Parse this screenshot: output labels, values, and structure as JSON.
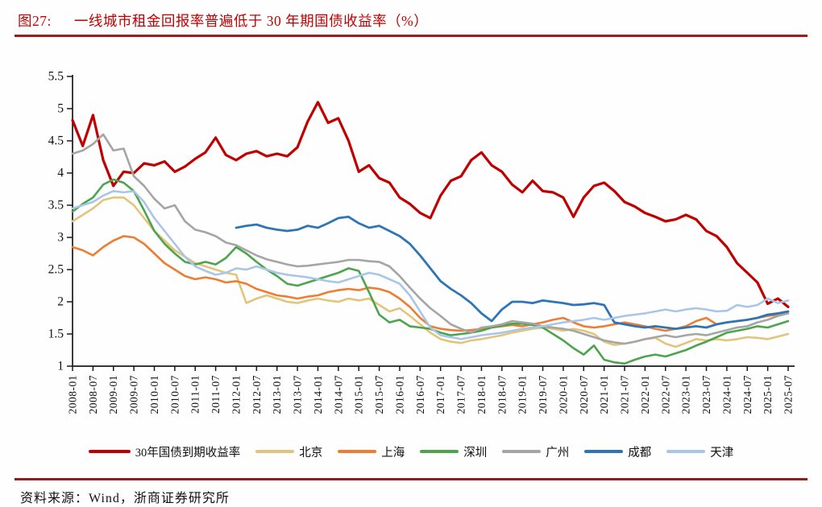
{
  "header": {
    "figure_label": "图27:",
    "title": "一线城市租金回报率普遍低于 30 年期国债收益率（%）"
  },
  "footer": {
    "source": "资料来源：Wind，浙商证券研究所"
  },
  "colors": {
    "title_red": "#C00000",
    "rule_red": "#9E1B1B",
    "axis_black": "#1a1a1a"
  },
  "chart_data": {
    "type": "line",
    "title": "一线城市租金回报率普遍低于 30 年期国债收益率（%）",
    "xlabel": "",
    "ylabel": "",
    "ylim": [
      1,
      5.5
    ],
    "grid": false,
    "legend_position": "bottom",
    "y_ticks": [
      1,
      1.5,
      2,
      2.5,
      3,
      3.5,
      4,
      4.5,
      5,
      5.5
    ],
    "x_tick_labels": [
      "2008-01",
      "2008-07",
      "2009-01",
      "2009-07",
      "2010-01",
      "2010-07",
      "2011-01",
      "2011-07",
      "2012-01",
      "2012-07",
      "2013-01",
      "2013-07",
      "2014-01",
      "2014-07",
      "2015-01",
      "2015-07",
      "2016-01",
      "2016-07",
      "2017-01",
      "2017-07",
      "2018-01",
      "2018-07",
      "2019-01",
      "2019-07",
      "2020-01",
      "2020-07",
      "2021-01",
      "2021-07",
      "2022-01",
      "2022-07",
      "2023-01",
      "2023-07",
      "2024-01",
      "2024-07",
      "2025-01",
      "2025-07"
    ],
    "x": [
      "2008-01",
      "2008-04",
      "2008-07",
      "2008-10",
      "2009-01",
      "2009-04",
      "2009-07",
      "2009-10",
      "2010-01",
      "2010-04",
      "2010-07",
      "2010-10",
      "2011-01",
      "2011-04",
      "2011-07",
      "2011-10",
      "2012-01",
      "2012-04",
      "2012-07",
      "2012-10",
      "2013-01",
      "2013-04",
      "2013-07",
      "2013-10",
      "2014-01",
      "2014-04",
      "2014-07",
      "2014-10",
      "2015-01",
      "2015-04",
      "2015-07",
      "2015-10",
      "2016-01",
      "2016-04",
      "2016-07",
      "2016-10",
      "2017-01",
      "2017-04",
      "2017-07",
      "2017-10",
      "2018-01",
      "2018-04",
      "2018-07",
      "2018-10",
      "2019-01",
      "2019-04",
      "2019-07",
      "2019-10",
      "2020-01",
      "2020-04",
      "2020-07",
      "2020-10",
      "2021-01",
      "2021-04",
      "2021-07",
      "2021-10",
      "2022-01",
      "2022-04",
      "2022-07",
      "2022-10",
      "2023-01",
      "2023-04",
      "2023-07",
      "2023-10",
      "2024-01",
      "2024-04",
      "2024-07",
      "2024-10",
      "2025-01",
      "2025-04",
      "2025-07"
    ],
    "series": [
      {
        "name": "30年国债到期收益率",
        "color": "#C00000",
        "width": 3.2,
        "values": [
          4.82,
          4.42,
          4.9,
          4.2,
          3.8,
          4.02,
          4.0,
          4.15,
          4.12,
          4.18,
          4.02,
          4.1,
          4.22,
          4.32,
          4.55,
          4.28,
          4.2,
          4.3,
          4.34,
          4.26,
          4.3,
          4.26,
          4.4,
          4.8,
          5.1,
          4.78,
          4.85,
          4.5,
          4.02,
          4.12,
          3.92,
          3.85,
          3.62,
          3.52,
          3.38,
          3.3,
          3.65,
          3.88,
          3.95,
          4.2,
          4.32,
          4.12,
          4.02,
          3.82,
          3.7,
          3.88,
          3.72,
          3.7,
          3.62,
          3.32,
          3.62,
          3.8,
          3.85,
          3.72,
          3.55,
          3.48,
          3.38,
          3.32,
          3.25,
          3.28,
          3.35,
          3.28,
          3.1,
          3.02,
          2.85,
          2.6,
          2.45,
          2.3,
          1.97,
          2.05,
          1.92
        ]
      },
      {
        "name": "北京",
        "color": "#E2C57A",
        "width": 2.6,
        "values": [
          3.25,
          3.35,
          3.45,
          3.58,
          3.62,
          3.62,
          3.5,
          3.3,
          3.1,
          2.95,
          2.8,
          2.7,
          2.6,
          2.55,
          2.5,
          2.45,
          2.42,
          1.98,
          2.05,
          2.1,
          2.05,
          2.0,
          1.98,
          2.02,
          2.05,
          2.02,
          2.0,
          2.05,
          2.02,
          2.05,
          1.95,
          1.85,
          1.9,
          1.78,
          1.65,
          1.52,
          1.42,
          1.38,
          1.36,
          1.4,
          1.42,
          1.45,
          1.48,
          1.52,
          1.55,
          1.58,
          1.6,
          1.58,
          1.55,
          1.58,
          1.55,
          1.5,
          1.38,
          1.33,
          1.35,
          1.38,
          1.42,
          1.44,
          1.35,
          1.3,
          1.36,
          1.42,
          1.4,
          1.42,
          1.4,
          1.42,
          1.45,
          1.44,
          1.42,
          1.46,
          1.5
        ]
      },
      {
        "name": "上海",
        "color": "#ED7D31",
        "width": 2.6,
        "values": [
          2.85,
          2.8,
          2.72,
          2.85,
          2.95,
          3.02,
          3.0,
          2.9,
          2.75,
          2.6,
          2.5,
          2.4,
          2.35,
          2.38,
          2.35,
          2.3,
          2.32,
          2.28,
          2.2,
          2.15,
          2.1,
          2.08,
          2.05,
          2.08,
          2.1,
          2.15,
          2.18,
          2.2,
          2.18,
          2.22,
          2.2,
          2.15,
          2.05,
          1.92,
          1.75,
          1.62,
          1.58,
          1.56,
          1.55,
          1.56,
          1.58,
          1.6,
          1.62,
          1.64,
          1.62,
          1.65,
          1.68,
          1.72,
          1.75,
          1.68,
          1.62,
          1.6,
          1.62,
          1.65,
          1.68,
          1.65,
          1.62,
          1.58,
          1.55,
          1.58,
          1.62,
          1.7,
          1.75,
          1.65,
          1.68,
          1.7,
          1.72,
          1.75,
          1.78,
          1.8,
          1.82
        ]
      },
      {
        "name": "深圳",
        "color": "#4CA44C",
        "width": 2.6,
        "values": [
          3.4,
          3.52,
          3.62,
          3.82,
          3.9,
          3.85,
          3.72,
          3.42,
          3.1,
          2.9,
          2.75,
          2.62,
          2.58,
          2.62,
          2.58,
          2.68,
          2.85,
          2.75,
          2.62,
          2.5,
          2.4,
          2.28,
          2.25,
          2.3,
          2.35,
          2.4,
          2.45,
          2.52,
          2.48,
          2.15,
          1.8,
          1.68,
          1.72,
          1.62,
          1.6,
          1.58,
          1.52,
          1.48,
          1.5,
          1.52,
          1.55,
          1.6,
          1.63,
          1.66,
          1.66,
          1.64,
          1.6,
          1.5,
          1.4,
          1.28,
          1.18,
          1.32,
          1.1,
          1.06,
          1.04,
          1.1,
          1.15,
          1.18,
          1.15,
          1.2,
          1.25,
          1.32,
          1.38,
          1.45,
          1.52,
          1.55,
          1.58,
          1.62,
          1.6,
          1.65,
          1.7
        ]
      },
      {
        "name": "广州",
        "color": "#A5A5A5",
        "width": 2.6,
        "values": [
          4.3,
          4.35,
          4.45,
          4.6,
          4.35,
          4.38,
          3.95,
          3.8,
          3.6,
          3.45,
          3.5,
          3.25,
          3.12,
          3.08,
          3.02,
          2.92,
          2.88,
          2.8,
          2.72,
          2.66,
          2.62,
          2.58,
          2.55,
          2.56,
          2.58,
          2.6,
          2.62,
          2.65,
          2.65,
          2.63,
          2.62,
          2.55,
          2.4,
          2.22,
          2.05,
          1.9,
          1.78,
          1.65,
          1.58,
          1.52,
          1.6,
          1.62,
          1.65,
          1.7,
          1.68,
          1.66,
          1.62,
          1.6,
          1.58,
          1.55,
          1.5,
          1.45,
          1.4,
          1.37,
          1.35,
          1.38,
          1.42,
          1.45,
          1.48,
          1.45,
          1.48,
          1.5,
          1.48,
          1.52,
          1.56,
          1.6,
          1.62,
          1.68,
          1.72,
          1.78,
          1.82
        ]
      },
      {
        "name": "成都",
        "color": "#2E75B6",
        "width": 2.8,
        "values": [
          null,
          null,
          null,
          null,
          null,
          null,
          null,
          null,
          null,
          null,
          null,
          null,
          null,
          null,
          null,
          null,
          3.15,
          3.18,
          3.2,
          3.15,
          3.12,
          3.1,
          3.12,
          3.18,
          3.15,
          3.22,
          3.3,
          3.32,
          3.22,
          3.15,
          3.18,
          3.1,
          3.02,
          2.9,
          2.72,
          2.52,
          2.32,
          2.2,
          2.1,
          1.98,
          1.82,
          1.7,
          1.88,
          2.0,
          2.0,
          1.98,
          2.02,
          2.0,
          1.98,
          1.95,
          1.96,
          1.98,
          1.95,
          1.68,
          1.65,
          1.62,
          1.6,
          1.62,
          1.6,
          1.58,
          1.6,
          1.62,
          1.6,
          1.65,
          1.68,
          1.7,
          1.72,
          1.75,
          1.8,
          1.82,
          1.85
        ]
      },
      {
        "name": "天津",
        "color": "#A9C6E8",
        "width": 2.6,
        "values": [
          3.45,
          3.5,
          3.55,
          3.65,
          3.72,
          3.7,
          3.72,
          3.55,
          3.3,
          3.1,
          2.9,
          2.7,
          2.55,
          2.48,
          2.42,
          2.45,
          2.52,
          2.5,
          2.55,
          2.5,
          2.45,
          2.42,
          2.4,
          2.38,
          2.35,
          2.32,
          2.3,
          2.35,
          2.4,
          2.45,
          2.42,
          2.35,
          2.28,
          2.1,
          1.85,
          1.6,
          1.48,
          1.45,
          1.42,
          1.45,
          1.48,
          1.5,
          1.52,
          1.55,
          1.58,
          1.6,
          1.62,
          1.65,
          1.68,
          1.7,
          1.72,
          1.75,
          1.72,
          1.75,
          1.78,
          1.8,
          1.82,
          1.85,
          1.88,
          1.85,
          1.88,
          1.9,
          1.88,
          1.85,
          1.86,
          1.95,
          1.92,
          1.95,
          2.05,
          1.98,
          2.02
        ]
      }
    ]
  }
}
